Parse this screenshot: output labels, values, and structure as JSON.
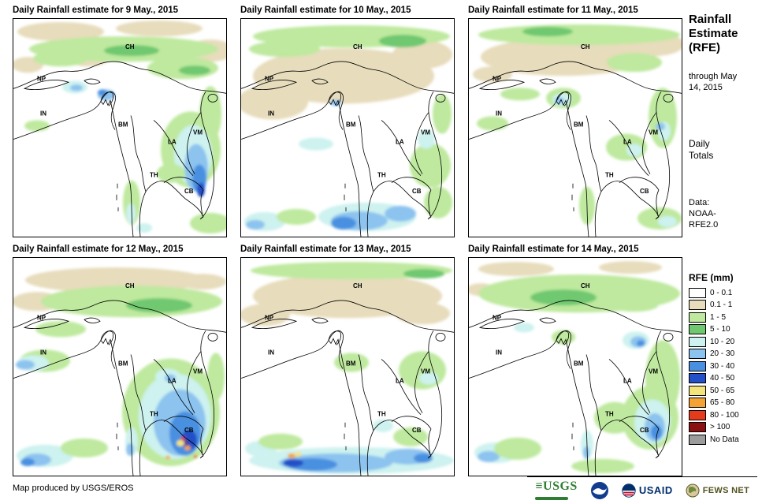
{
  "panels": [
    {
      "title": "Daily Rainfall estimate for 9 May., 2015",
      "rain_patches": [
        [
          60,
          16,
          55,
          12,
          "t"
        ],
        [
          185,
          12,
          55,
          10,
          "t"
        ],
        [
          250,
          40,
          30,
          14,
          "t"
        ],
        [
          18,
          58,
          20,
          10,
          "t"
        ],
        [
          95,
          52,
          25,
          8,
          "t"
        ],
        [
          140,
          38,
          120,
          16,
          "g1"
        ],
        [
          60,
          50,
          35,
          10,
          "g1"
        ],
        [
          215,
          62,
          45,
          14,
          "g1"
        ],
        [
          250,
          120,
          14,
          35,
          "g1"
        ],
        [
          150,
          40,
          35,
          7,
          "g2"
        ],
        [
          230,
          65,
          20,
          6,
          "g2"
        ],
        [
          78,
          86,
          16,
          8,
          "c"
        ],
        [
          80,
          87,
          8,
          4,
          "b1"
        ],
        [
          118,
          96,
          11,
          7,
          "b1"
        ],
        [
          113,
          93,
          6,
          4,
          "b2"
        ],
        [
          225,
          165,
          38,
          48,
          "g1"
        ],
        [
          228,
          172,
          24,
          38,
          "c"
        ],
        [
          232,
          188,
          15,
          30,
          "b1"
        ],
        [
          236,
          202,
          9,
          18,
          "b2"
        ],
        [
          238,
          216,
          5,
          9,
          "b3"
        ],
        [
          150,
          232,
          11,
          28,
          "g1"
        ],
        [
          149,
          246,
          6,
          13,
          "c"
        ],
        [
          250,
          258,
          26,
          13,
          "g1"
        ],
        [
          166,
          264,
          10,
          6,
          "c"
        ],
        [
          200,
          195,
          18,
          12,
          "g1"
        ],
        [
          30,
          135,
          16,
          7,
          "g1"
        ]
      ]
    },
    {
      "title": "Daily Rainfall estimate for 10 May., 2015",
      "rain_patches": [
        [
          130,
          72,
          115,
          35,
          "t"
        ],
        [
          40,
          105,
          45,
          22,
          "t"
        ],
        [
          230,
          45,
          38,
          18,
          "t"
        ],
        [
          140,
          22,
          125,
          14,
          "g1"
        ],
        [
          55,
          38,
          45,
          10,
          "g1"
        ],
        [
          205,
          28,
          30,
          8,
          "g2"
        ],
        [
          95,
          158,
          22,
          8,
          "c"
        ],
        [
          120,
          106,
          7,
          4,
          "b1"
        ],
        [
          160,
          250,
          62,
          18,
          "c"
        ],
        [
          150,
          255,
          36,
          12,
          "b1"
        ],
        [
          130,
          258,
          16,
          8,
          "b2"
        ],
        [
          202,
          246,
          20,
          10,
          "b1"
        ],
        [
          30,
          256,
          26,
          12,
          "c"
        ],
        [
          18,
          260,
          12,
          6,
          "b1"
        ],
        [
          240,
          185,
          26,
          28,
          "g1"
        ],
        [
          250,
          232,
          18,
          20,
          "g1"
        ],
        [
          235,
          152,
          11,
          12,
          "c"
        ],
        [
          70,
          250,
          25,
          10,
          "g1"
        ],
        [
          255,
          120,
          12,
          25,
          "g1"
        ]
      ]
    },
    {
      "title": "Daily Rainfall estimate for 11 May., 2015",
      "rain_patches": [
        [
          120,
          48,
          105,
          24,
          "t"
        ],
        [
          235,
          32,
          38,
          15,
          "t"
        ],
        [
          30,
          70,
          25,
          10,
          "t"
        ],
        [
          140,
          20,
          128,
          13,
          "g1"
        ],
        [
          100,
          16,
          32,
          6,
          "g2"
        ],
        [
          210,
          55,
          35,
          12,
          "g1"
        ],
        [
          30,
          132,
          20,
          9,
          "g1"
        ],
        [
          65,
          95,
          25,
          8,
          "g1"
        ],
        [
          120,
          100,
          22,
          13,
          "g1"
        ],
        [
          118,
          102,
          12,
          8,
          "c"
        ],
        [
          115,
          103,
          6,
          4,
          "b1"
        ],
        [
          246,
          125,
          18,
          38,
          "g1"
        ],
        [
          248,
          142,
          8,
          12,
          "c"
        ],
        [
          243,
          136,
          6,
          5,
          "b1"
        ],
        [
          200,
          162,
          26,
          17,
          "g1"
        ],
        [
          210,
          166,
          10,
          8,
          "c"
        ],
        [
          150,
          236,
          10,
          24,
          "g1"
        ],
        [
          242,
          252,
          28,
          14,
          "g1"
        ],
        [
          252,
          256,
          12,
          7,
          "c"
        ]
      ]
    },
    {
      "title": "Daily Rainfall estimate for 12 May., 2015",
      "rain_patches": [
        [
          130,
          28,
          115,
          16,
          "t"
        ],
        [
          30,
          55,
          32,
          12,
          "t"
        ],
        [
          240,
          30,
          30,
          10,
          "t"
        ],
        [
          150,
          55,
          115,
          20,
          "g1"
        ],
        [
          185,
          60,
          42,
          9,
          "g2"
        ],
        [
          60,
          90,
          32,
          10,
          "g1"
        ],
        [
          40,
          130,
          32,
          14,
          "g1"
        ],
        [
          25,
          133,
          20,
          10,
          "c"
        ],
        [
          15,
          135,
          12,
          6,
          "b1"
        ],
        [
          200,
          195,
          62,
          68,
          "g1"
        ],
        [
          205,
          200,
          46,
          54,
          "c"
        ],
        [
          211,
          208,
          33,
          42,
          "b1"
        ],
        [
          218,
          222,
          20,
          28,
          "b2"
        ],
        [
          223,
          230,
          10,
          13,
          "b3"
        ],
        [
          212,
          234,
          5,
          4,
          "y"
        ],
        [
          221,
          240,
          4,
          3,
          "o"
        ],
        [
          215,
          228,
          3,
          2,
          "r"
        ],
        [
          219,
          233,
          2,
          2,
          "d"
        ],
        [
          196,
          252,
          3,
          2,
          "o"
        ],
        [
          231,
          251,
          2,
          2,
          "r"
        ],
        [
          40,
          250,
          36,
          14,
          "c"
        ],
        [
          30,
          255,
          18,
          8,
          "b1"
        ],
        [
          18,
          258,
          9,
          5,
          "b2"
        ],
        [
          150,
          232,
          8,
          18,
          "c"
        ],
        [
          148,
          242,
          5,
          8,
          "b1"
        ],
        [
          257,
          150,
          11,
          30,
          "g1"
        ],
        [
          196,
          150,
          16,
          10,
          "c"
        ],
        [
          199,
          152,
          7,
          5,
          "b1"
        ],
        [
          90,
          240,
          30,
          12,
          "g1"
        ]
      ]
    },
    {
      "title": "Daily Rainfall estimate for 13 May., 2015",
      "rain_patches": [
        [
          135,
          48,
          120,
          28,
          "t"
        ],
        [
          30,
          72,
          32,
          14,
          "t"
        ],
        [
          230,
          70,
          35,
          14,
          "t"
        ],
        [
          140,
          16,
          128,
          11,
          "g1"
        ],
        [
          232,
          20,
          26,
          6,
          "g2"
        ],
        [
          230,
          142,
          30,
          24,
          "g1"
        ],
        [
          238,
          152,
          12,
          8,
          "c"
        ],
        [
          140,
          132,
          22,
          12,
          "g1"
        ],
        [
          215,
          226,
          22,
          12,
          "g1"
        ],
        [
          180,
          212,
          13,
          8,
          "c"
        ],
        [
          140,
          256,
          130,
          17,
          "c"
        ],
        [
          120,
          259,
          72,
          12,
          "b1"
        ],
        [
          90,
          261,
          32,
          8,
          "b2"
        ],
        [
          66,
          259,
          13,
          5,
          "b3"
        ],
        [
          64,
          250,
          5,
          3,
          "o"
        ],
        [
          72,
          248,
          5,
          3,
          "y"
        ],
        [
          212,
          251,
          30,
          10,
          "b1"
        ],
        [
          231,
          253,
          12,
          6,
          "b2"
        ],
        [
          25,
          241,
          20,
          10,
          "c"
        ],
        [
          50,
          232,
          28,
          10,
          "g1"
        ]
      ]
    },
    {
      "title": "Daily Rainfall estimate for 14 May., 2015",
      "rain_patches": [
        [
          60,
          14,
          48,
          9,
          "t"
        ],
        [
          205,
          12,
          40,
          8,
          "t"
        ],
        [
          15,
          40,
          18,
          8,
          "t"
        ],
        [
          140,
          45,
          128,
          24,
          "g1"
        ],
        [
          120,
          50,
          42,
          10,
          "g2"
        ],
        [
          210,
          60,
          30,
          8,
          "g1"
        ],
        [
          212,
          104,
          17,
          11,
          "c"
        ],
        [
          215,
          106,
          10,
          7,
          "b1"
        ],
        [
          218,
          108,
          5,
          4,
          "b2"
        ],
        [
          246,
          152,
          22,
          48,
          "g1"
        ],
        [
          230,
          202,
          36,
          40,
          "g1"
        ],
        [
          233,
          207,
          23,
          28,
          "c"
        ],
        [
          236,
          214,
          13,
          18,
          "b1"
        ],
        [
          238,
          220,
          7,
          9,
          "b2"
        ],
        [
          185,
          202,
          26,
          20,
          "g1"
        ],
        [
          150,
          236,
          8,
          18,
          "c"
        ],
        [
          149,
          246,
          4,
          8,
          "b1"
        ],
        [
          35,
          246,
          28,
          13,
          "c"
        ],
        [
          25,
          251,
          14,
          7,
          "b1"
        ],
        [
          62,
          241,
          30,
          14,
          "g1"
        ],
        [
          170,
          263,
          40,
          9,
          "g1"
        ],
        [
          120,
          100,
          15,
          9,
          "g1"
        ],
        [
          70,
          88,
          13,
          6,
          "c"
        ]
      ]
    }
  ],
  "map_labels": [
    "CH",
    "NP",
    "IN",
    "BM",
    "LA",
    "VM",
    "TH",
    "CB"
  ],
  "palette": {
    "t": "#E7DCBC",
    "g1": "#BEE99E",
    "g2": "#6FC86F",
    "c": "#CDF2EF",
    "b1": "#8CC3EF",
    "b2": "#4A90E0",
    "b3": "#2350C8",
    "y": "#F3E37B",
    "o": "#F3A233",
    "r": "#E63A1C",
    "d": "#8A1012",
    "nd": "#9C9C9C"
  },
  "sidebar": {
    "title": "Rainfall Estimate (RFE)",
    "through": "through May 14, 2015",
    "daily_totals": "Daily Totals",
    "data_source": "Data: NOAA-RFE2.0",
    "legend": {
      "title": "RFE (mm)",
      "items": [
        {
          "label": "0 - 0.1",
          "color": "#FFFFFF"
        },
        {
          "label": "0.1 - 1",
          "color": "#E7DCBC"
        },
        {
          "label": "1 - 5",
          "color": "#BEE99E"
        },
        {
          "label": "5 - 10",
          "color": "#6FC86F"
        },
        {
          "label": "10 - 20",
          "color": "#CDF2EF"
        },
        {
          "label": "20 - 30",
          "color": "#8CC3EF"
        },
        {
          "label": "30 - 40",
          "color": "#4A90E0"
        },
        {
          "label": "40 - 50",
          "color": "#2350C8"
        },
        {
          "label": "50 - 65",
          "color": "#F3E37B"
        },
        {
          "label": "65 - 80",
          "color": "#F3A233"
        },
        {
          "label": "80 - 100",
          "color": "#E63A1C"
        },
        {
          "label": "> 100",
          "color": "#8A1012"
        },
        {
          "label": "No Data",
          "color": "#9C9C9C"
        }
      ]
    }
  },
  "footer": {
    "credit": "Map produced by USGS/EROS",
    "logos": [
      {
        "name": "usgs",
        "text": "USGS"
      },
      {
        "name": "noaa",
        "text": ""
      },
      {
        "name": "usaid",
        "text": "USAID"
      },
      {
        "name": "fewsnet",
        "text": "FEWS NET"
      }
    ]
  }
}
